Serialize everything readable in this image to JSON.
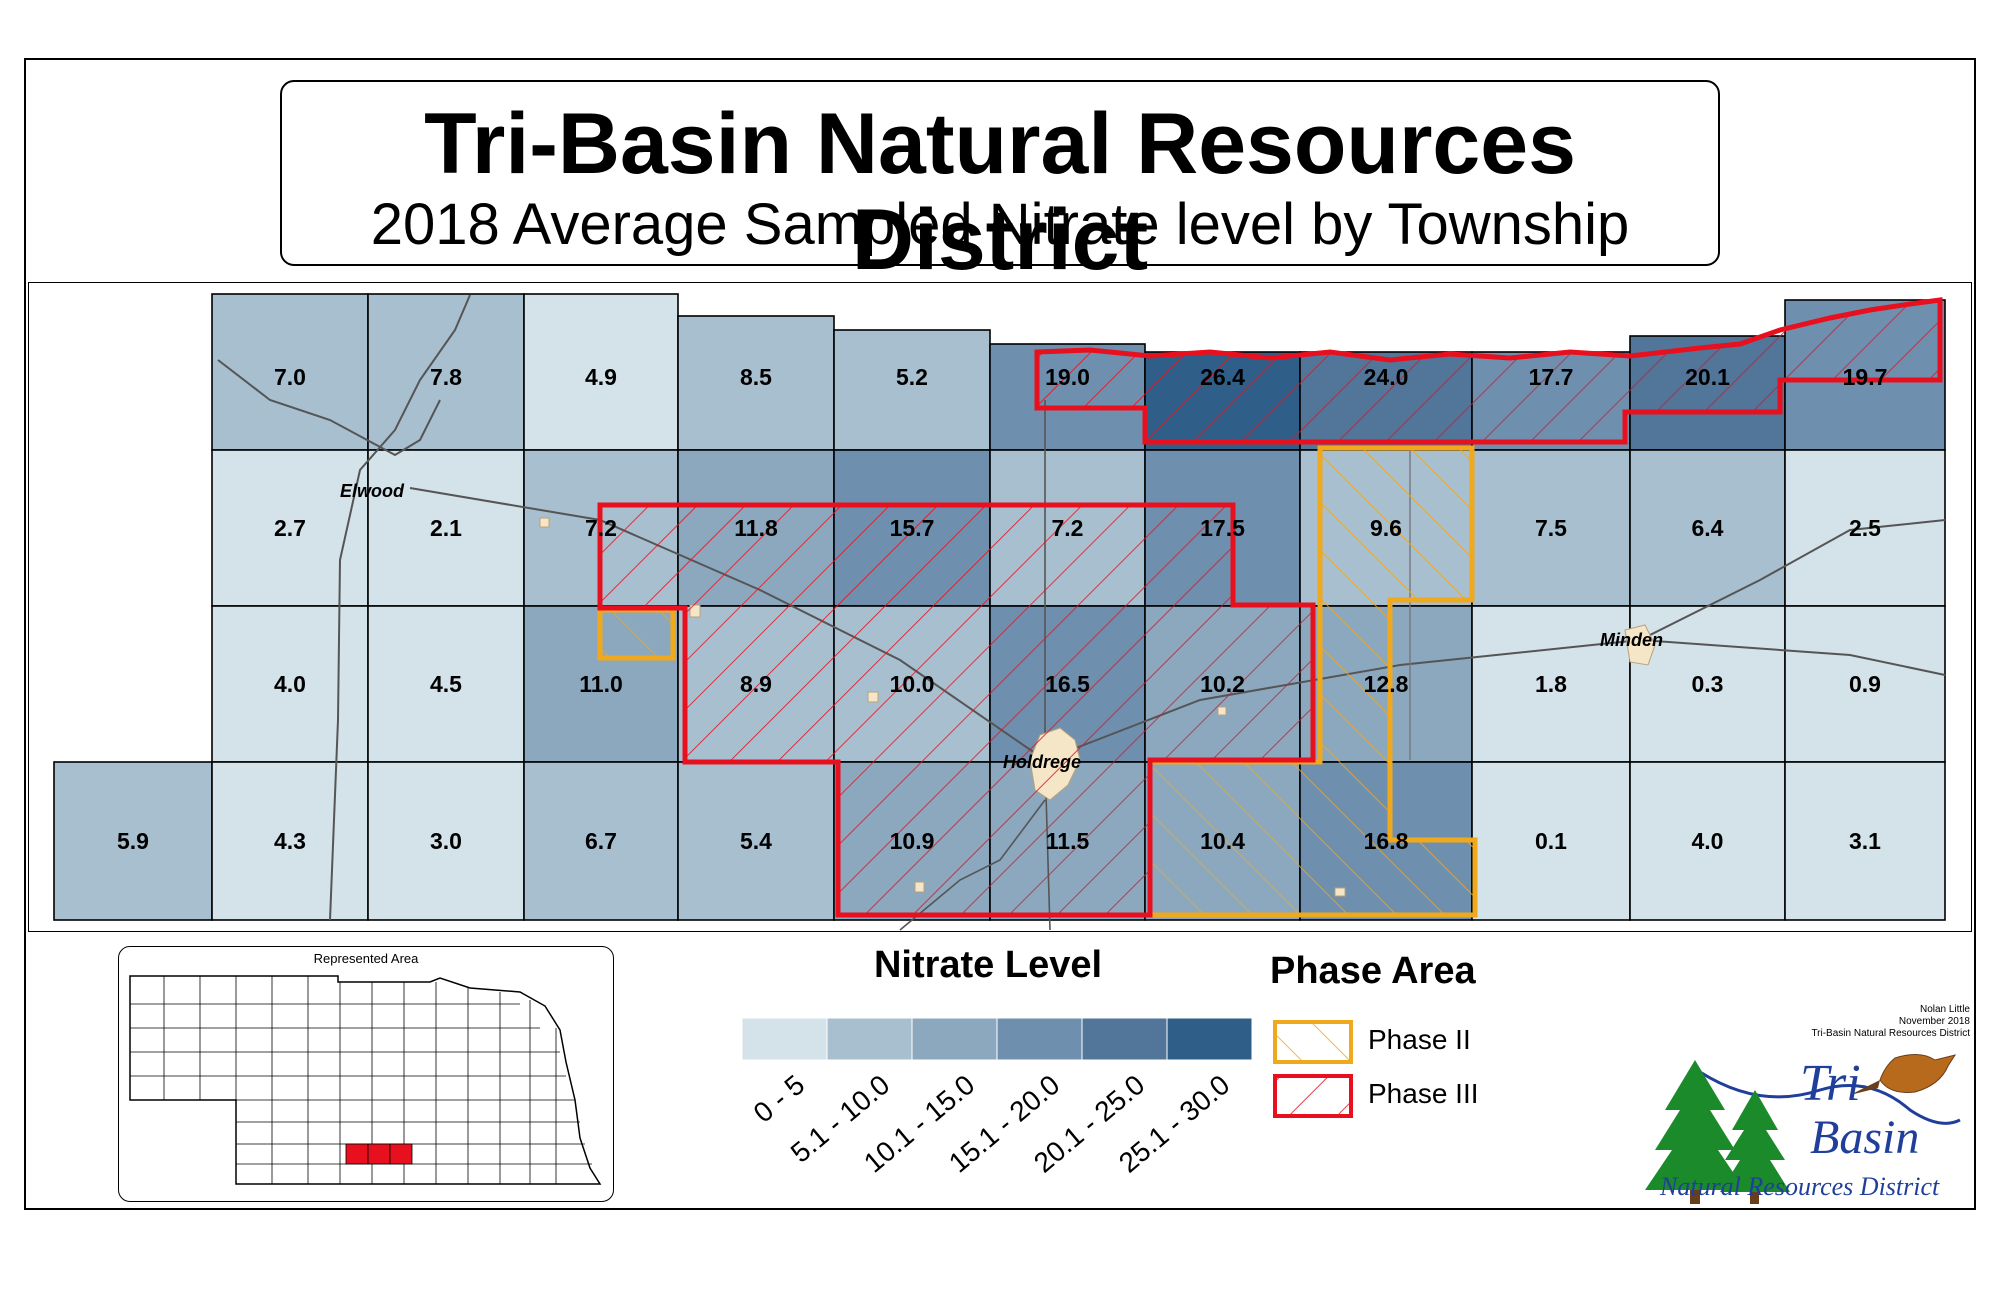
{
  "title": "Tri-Basin Natural Resources District",
  "subtitle": "2018 Average Sampled Nitrate level by Township",
  "townships": [
    {
      "row": 0,
      "col": 1,
      "value": "7.0",
      "cls": 1
    },
    {
      "row": 0,
      "col": 2,
      "value": "7.8",
      "cls": 1
    },
    {
      "row": 0,
      "col": 3,
      "value": "4.9",
      "cls": 0
    },
    {
      "row": 0,
      "col": 4,
      "value": "8.5",
      "cls": 1
    },
    {
      "row": 0,
      "col": 5,
      "value": "5.2",
      "cls": 1
    },
    {
      "row": 0,
      "col": 6,
      "value": "19.0",
      "cls": 3
    },
    {
      "row": 0,
      "col": 7,
      "value": "26.4",
      "cls": 5
    },
    {
      "row": 0,
      "col": 8,
      "value": "24.0",
      "cls": 4
    },
    {
      "row": 0,
      "col": 9,
      "value": "17.7",
      "cls": 3
    },
    {
      "row": 0,
      "col": 10,
      "value": "20.1",
      "cls": 4
    },
    {
      "row": 0,
      "col": 11,
      "value": "19.7",
      "cls": 3
    },
    {
      "row": 1,
      "col": 1,
      "value": "2.7",
      "cls": 0
    },
    {
      "row": 1,
      "col": 2,
      "value": "2.1",
      "cls": 0
    },
    {
      "row": 1,
      "col": 3,
      "value": "7.2",
      "cls": 1
    },
    {
      "row": 1,
      "col": 4,
      "value": "11.8",
      "cls": 2
    },
    {
      "row": 1,
      "col": 5,
      "value": "15.7",
      "cls": 3
    },
    {
      "row": 1,
      "col": 6,
      "value": "7.2",
      "cls": 1
    },
    {
      "row": 1,
      "col": 7,
      "value": "17.5",
      "cls": 3
    },
    {
      "row": 1,
      "col": 8,
      "value": "9.6",
      "cls": 1
    },
    {
      "row": 1,
      "col": 9,
      "value": "7.5",
      "cls": 1
    },
    {
      "row": 1,
      "col": 10,
      "value": "6.4",
      "cls": 1
    },
    {
      "row": 1,
      "col": 11,
      "value": "2.5",
      "cls": 0
    },
    {
      "row": 2,
      "col": 1,
      "value": "4.0",
      "cls": 0
    },
    {
      "row": 2,
      "col": 2,
      "value": "4.5",
      "cls": 0
    },
    {
      "row": 2,
      "col": 3,
      "value": "11.0",
      "cls": 2
    },
    {
      "row": 2,
      "col": 4,
      "value": "8.9",
      "cls": 1
    },
    {
      "row": 2,
      "col": 5,
      "value": "10.0",
      "cls": 1
    },
    {
      "row": 2,
      "col": 6,
      "value": "16.5",
      "cls": 3
    },
    {
      "row": 2,
      "col": 7,
      "value": "10.2",
      "cls": 2
    },
    {
      "row": 2,
      "col": 8,
      "value": "12.8",
      "cls": 2
    },
    {
      "row": 2,
      "col": 9,
      "value": "1.8",
      "cls": 0
    },
    {
      "row": 2,
      "col": 10,
      "value": "0.3",
      "cls": 0
    },
    {
      "row": 2,
      "col": 11,
      "value": "0.9",
      "cls": 0
    },
    {
      "row": 3,
      "col": 0,
      "value": "5.9",
      "cls": 1
    },
    {
      "row": 3,
      "col": 1,
      "value": "4.3",
      "cls": 0
    },
    {
      "row": 3,
      "col": 2,
      "value": "3.0",
      "cls": 0
    },
    {
      "row": 3,
      "col": 3,
      "value": "6.7",
      "cls": 1
    },
    {
      "row": 3,
      "col": 4,
      "value": "5.4",
      "cls": 1
    },
    {
      "row": 3,
      "col": 5,
      "value": "10.9",
      "cls": 2
    },
    {
      "row": 3,
      "col": 6,
      "value": "11.5",
      "cls": 2
    },
    {
      "row": 3,
      "col": 7,
      "value": "10.4",
      "cls": 2
    },
    {
      "row": 3,
      "col": 8,
      "value": "16.8",
      "cls": 3
    },
    {
      "row": 3,
      "col": 9,
      "value": "0.1",
      "cls": 0
    },
    {
      "row": 3,
      "col": 10,
      "value": "4.0",
      "cls": 0
    },
    {
      "row": 3,
      "col": 11,
      "value": "3.1",
      "cls": 0
    }
  ],
  "cities": [
    {
      "name": "Elwood"
    },
    {
      "name": "Holdrege"
    },
    {
      "name": "Minden"
    }
  ],
  "legend": {
    "title": "Nitrate Level",
    "classes": [
      {
        "label": "0 - 5",
        "color": "#d4e2e9"
      },
      {
        "label": "5.1 - 10.0",
        "color": "#a8bfcf"
      },
      {
        "label": "10.1 - 15.0",
        "color": "#8ba8bf"
      },
      {
        "label": "15.1 - 20.0",
        "color": "#6f8fae"
      },
      {
        "label": "20.1 - 25.0",
        "color": "#51769a"
      },
      {
        "label": "25.1 - 30.0",
        "color": "#2f5f88"
      }
    ]
  },
  "phase_legend": {
    "title": "Phase Area",
    "items": [
      {
        "label": "Phase II",
        "color": "#f0a81c"
      },
      {
        "label": "Phase III",
        "color": "#e8101e"
      }
    ]
  },
  "inset": {
    "title": "Represented Area"
  },
  "credit": {
    "line1": "Nolan Little",
    "line2": "November 2018",
    "line3": "Tri-Basin Natural Resources District"
  },
  "logo": {
    "tri": "Tri",
    "basin": "Basin",
    "nrd": "Natural Resources District"
  }
}
